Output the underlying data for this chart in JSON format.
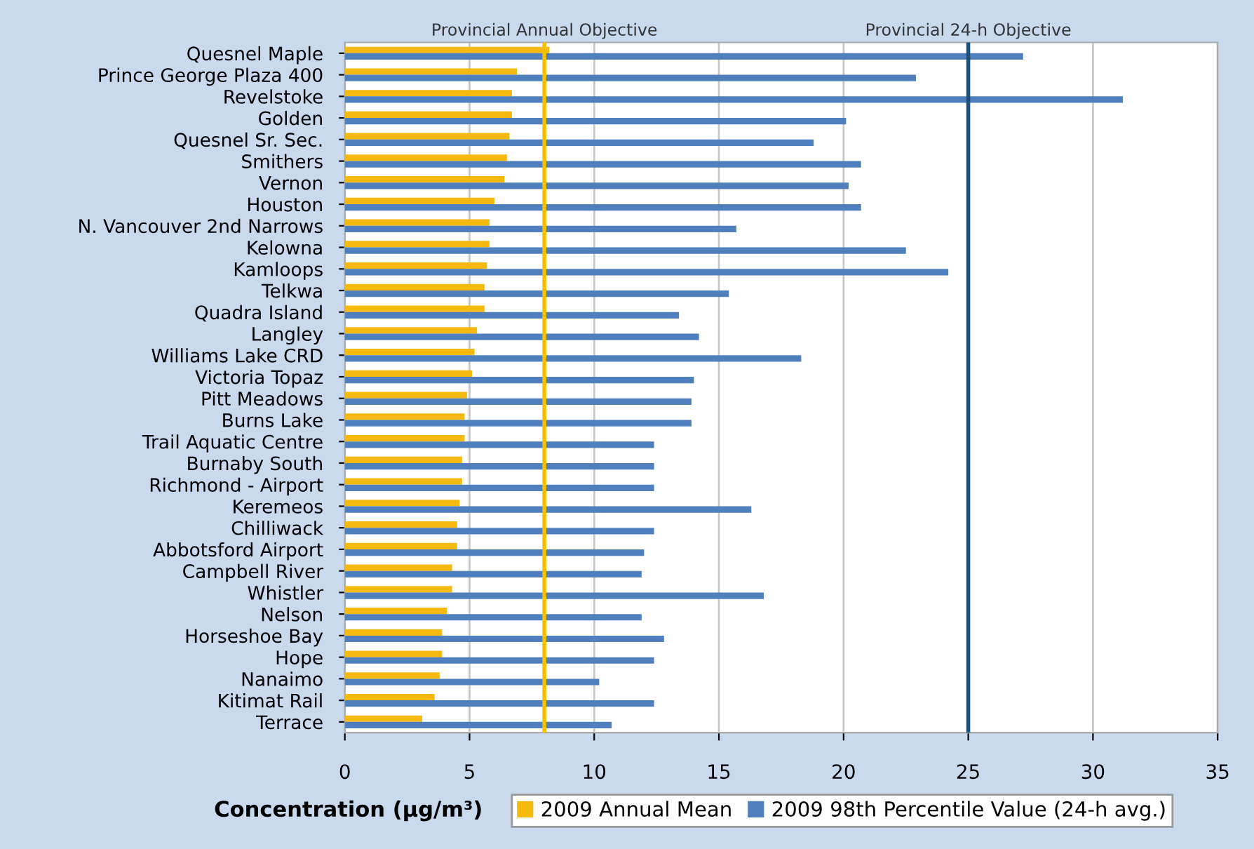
{
  "chart_data": {
    "type": "bar",
    "orientation": "horizontal",
    "xlabel": "Concentration (μg/m³)",
    "categories": [
      "Quesnel Maple",
      "Prince George Plaza 400",
      "Revelstoke",
      "Golden",
      "Quesnel Sr. Sec.",
      "Smithers",
      "Vernon",
      "Houston",
      "N. Vancouver 2nd Narrows",
      "Kelowna",
      "Kamloops",
      "Telkwa",
      "Quadra Island",
      "Langley",
      "Williams Lake CRD",
      "Victoria Topaz",
      "Pitt Meadows",
      "Burns Lake",
      "Trail Aquatic Centre",
      "Burnaby South",
      "Richmond - Airport",
      "Keremeos",
      "Chilliwack",
      "Abbotsford Airport",
      "Campbell River",
      "Whistler",
      "Nelson",
      "Horseshoe Bay",
      "Hope",
      "Nanaimo",
      "Kitimat Rail",
      "Terrace"
    ],
    "series": [
      {
        "name": "2009 Annual Mean",
        "color": "#f5b90f",
        "values": [
          8.2,
          6.9,
          6.7,
          6.7,
          6.6,
          6.5,
          6.4,
          6.0,
          5.8,
          5.8,
          5.7,
          5.6,
          5.6,
          5.3,
          5.2,
          5.1,
          4.9,
          4.8,
          4.8,
          4.7,
          4.7,
          4.6,
          4.5,
          4.5,
          4.3,
          4.3,
          4.1,
          3.9,
          3.9,
          3.8,
          3.6,
          3.1
        ]
      },
      {
        "name": "2009 98th Percentile Value (24-h avg.)",
        "color": "#4f7fbd",
        "values": [
          27.2,
          22.9,
          31.2,
          20.1,
          18.8,
          20.7,
          20.2,
          20.7,
          15.7,
          22.5,
          24.2,
          15.4,
          13.4,
          14.2,
          18.3,
          14.0,
          13.9,
          13.9,
          12.4,
          12.4,
          12.4,
          16.3,
          12.4,
          12.0,
          11.9,
          16.8,
          11.9,
          12.8,
          12.4,
          10.2,
          12.4,
          10.7
        ]
      }
    ],
    "xlim": [
      0,
      35
    ],
    "xticks": [
      0,
      5,
      10,
      15,
      20,
      25,
      30,
      35
    ],
    "grid": "x",
    "legend": "bottom",
    "ref_lines": [
      {
        "axis": "x",
        "value": 8,
        "label": "Provincial Annual Objective",
        "color": "#f5c000"
      },
      {
        "axis": "x",
        "value": 25,
        "label": "Provincial 24-h Objective",
        "color": "#1f4e79"
      }
    ]
  }
}
